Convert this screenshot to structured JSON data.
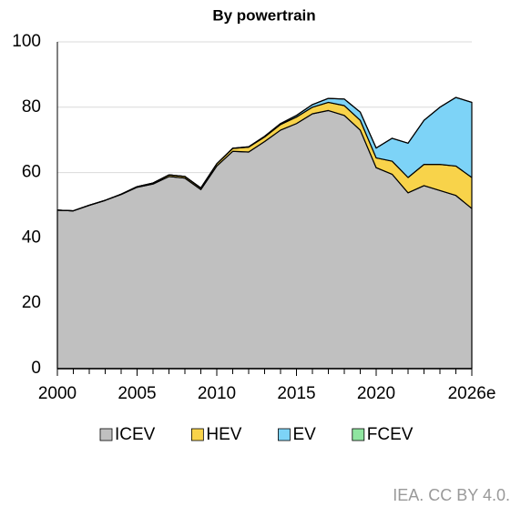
{
  "chart_data": {
    "type": "stacked-area",
    "title": "By powertrain",
    "source": "IEA. CC BY 4.0.",
    "x": [
      2000,
      2001,
      2002,
      2003,
      2004,
      2005,
      2006,
      2007,
      2008,
      2009,
      2010,
      2011,
      2012,
      2013,
      2014,
      2015,
      2016,
      2017,
      2018,
      2019,
      2020,
      2021,
      2022,
      2023,
      2024,
      2025,
      2026
    ],
    "xlim": [
      2000,
      2026
    ],
    "xticks": [
      2000,
      2005,
      2010,
      2015,
      2020,
      {
        "value": 2026,
        "label": "2026e"
      }
    ],
    "ylim": [
      0,
      100
    ],
    "yticks": [
      0,
      20,
      40,
      60,
      80,
      100
    ],
    "grid": true,
    "series": [
      {
        "name": "ICEV",
        "color": "#c0c0c0",
        "values": [
          48.5,
          48.3,
          50,
          51.5,
          53.3,
          55.5,
          56.5,
          58.8,
          58.3,
          54.8,
          62,
          66.5,
          66.3,
          69.5,
          73,
          75,
          78,
          79,
          77.5,
          73,
          61.5,
          59.5,
          53.8,
          56,
          54.5,
          53,
          49
        ]
      },
      {
        "name": "HEV",
        "color": "#f8d34a",
        "values": [
          0,
          0,
          0,
          0,
          0.1,
          0.2,
          0.3,
          0.5,
          0.5,
          0.5,
          0.7,
          0.9,
          1.5,
          1.4,
          1.7,
          2,
          2,
          2.5,
          3,
          3,
          3,
          4,
          4.7,
          6.5,
          8,
          9,
          9.5
        ]
      },
      {
        "name": "EV",
        "color": "#7dd3f7",
        "values": [
          0,
          0,
          0,
          0,
          0,
          0,
          0,
          0,
          0,
          0,
          0,
          0.05,
          0.1,
          0.2,
          0.3,
          0.5,
          0.8,
          1.2,
          2,
          2.5,
          3,
          7,
          10.5,
          13.5,
          17.5,
          21,
          23
        ]
      },
      {
        "name": "FCEV",
        "color": "#8fe5a0",
        "values": [
          0,
          0,
          0,
          0,
          0,
          0,
          0,
          0,
          0,
          0,
          0,
          0,
          0,
          0,
          0,
          0,
          0,
          0,
          0,
          0,
          0,
          0,
          0,
          0,
          0,
          0,
          0
        ]
      }
    ]
  }
}
